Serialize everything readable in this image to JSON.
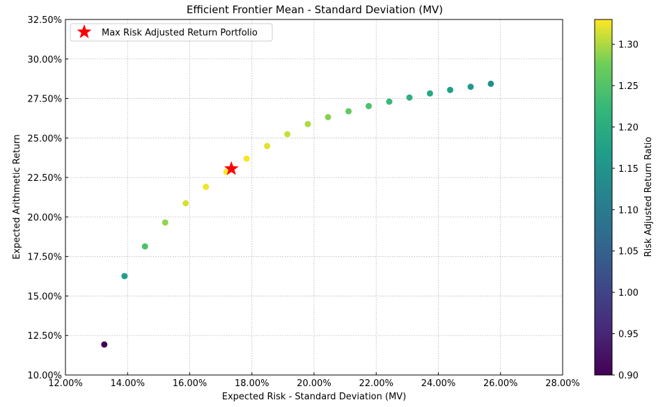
{
  "chart_data": {
    "type": "scatter",
    "title": "Efficient Frontier Mean - Standard Deviation (MV)",
    "xlabel": "Expected Risk - Standard Deviation (MV)",
    "ylabel": "Expected Arithmetic Return",
    "colorbar_label": "Risk Adjusted Return Ratio",
    "xlim": [
      0.12,
      0.28
    ],
    "ylim": [
      0.1,
      0.325
    ],
    "x_ticks": [
      0.12,
      0.14,
      0.16,
      0.18,
      0.2,
      0.22,
      0.24,
      0.26,
      0.28
    ],
    "x_tick_labels": [
      "12.00%",
      "14.00%",
      "16.00%",
      "18.00%",
      "20.00%",
      "22.00%",
      "24.00%",
      "26.00%",
      "28.00%"
    ],
    "y_ticks": [
      0.1,
      0.125,
      0.15,
      0.175,
      0.2,
      0.225,
      0.25,
      0.275,
      0.3,
      0.325
    ],
    "y_tick_labels": [
      "10.00%",
      "12.50%",
      "15.00%",
      "17.50%",
      "20.00%",
      "22.50%",
      "25.00%",
      "27.50%",
      "30.00%",
      "32.50%"
    ],
    "grid": true,
    "legend_placement": "top-left",
    "colormap": "viridis",
    "colorbar_range": [
      0.9,
      1.33
    ],
    "colorbar_ticks": [
      0.9,
      0.95,
      1.0,
      1.05,
      1.1,
      1.15,
      1.2,
      1.25,
      1.3
    ],
    "colorbar_tick_labels": [
      "0.90",
      "0.95",
      "1.00",
      "1.05",
      "1.10",
      "1.15",
      "1.20",
      "1.25",
      "1.30"
    ],
    "points": [
      {
        "x": 0.1325,
        "y": 0.1193,
        "ratio": 0.9
      },
      {
        "x": 0.139,
        "y": 0.1626,
        "ratio": 1.17
      },
      {
        "x": 0.1456,
        "y": 0.1814,
        "ratio": 1.245
      },
      {
        "x": 0.1521,
        "y": 0.1965,
        "ratio": 1.29
      },
      {
        "x": 0.1587,
        "y": 0.2087,
        "ratio": 1.315
      },
      {
        "x": 0.1652,
        "y": 0.2191,
        "ratio": 1.325
      },
      {
        "x": 0.1718,
        "y": 0.2285,
        "ratio": 1.33
      },
      {
        "x": 0.1783,
        "y": 0.2369,
        "ratio": 1.328
      },
      {
        "x": 0.1849,
        "y": 0.2449,
        "ratio": 1.32
      },
      {
        "x": 0.1914,
        "y": 0.2524,
        "ratio": 1.31
      },
      {
        "x": 0.198,
        "y": 0.2588,
        "ratio": 1.3
      },
      {
        "x": 0.2045,
        "y": 0.2632,
        "ratio": 1.285
      },
      {
        "x": 0.2111,
        "y": 0.2669,
        "ratio": 1.265
      },
      {
        "x": 0.2176,
        "y": 0.2702,
        "ratio": 1.245
      },
      {
        "x": 0.2242,
        "y": 0.273,
        "ratio": 1.225
      },
      {
        "x": 0.2307,
        "y": 0.2756,
        "ratio": 1.205
      },
      {
        "x": 0.2373,
        "y": 0.2782,
        "ratio": 1.19
      },
      {
        "x": 0.2438,
        "y": 0.2804,
        "ratio": 1.17
      },
      {
        "x": 0.2504,
        "y": 0.2824,
        "ratio": 1.155
      },
      {
        "x": 0.2569,
        "y": 0.2843,
        "ratio": 1.14
      }
    ],
    "highlight": {
      "name": "Max Risk Adjusted Return Portfolio",
      "x": 0.1734,
      "y": 0.2305,
      "color": "#ff0000",
      "marker": "star"
    }
  }
}
